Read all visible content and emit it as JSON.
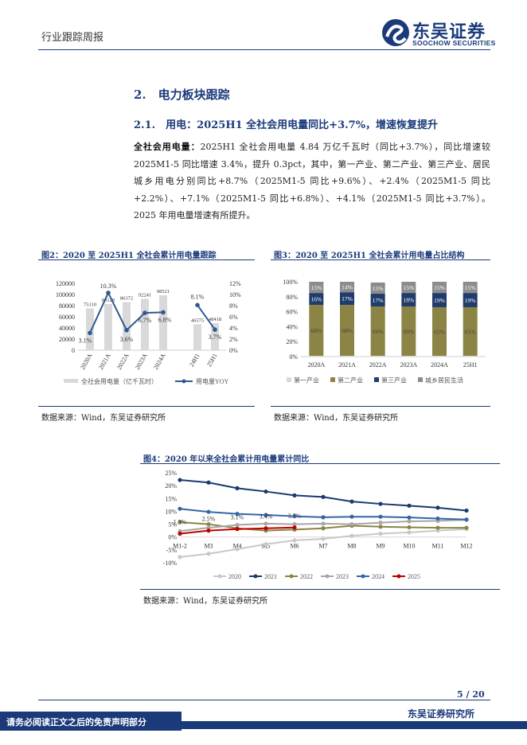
{
  "header": {
    "report_type": "行业跟踪周报",
    "logo_cn": "东吴证券",
    "logo_en": "SOOCHOW SECURITIES"
  },
  "section": {
    "heading": "2.　电力板块跟踪",
    "subheading": "2.1.　用电：2025H1 全社会用电量同比+3.7%，增速恢复提升"
  },
  "paragraph": {
    "lead": "全社会用电量：",
    "body": "2025H1 全社会用电量 4.84 万亿千瓦时（同比+3.7%），同比增速较 2025M1-5 同比增速 3.4%，提升 0.3pct，其中，第一产业、第二产业、第三产业、居民城乡用电分别同比+8.7%（2025M1-5 同比+9.6%）、+2.4%（2025M1-5 同比+2.2%）、+7.1%（2025M1-5 同比+6.8%）、+4.1%（2025M1-5 同比+3.7%）。2025 年用电量增速有所提升。"
  },
  "figures": {
    "fig2": {
      "title": "图2：2020 至 2025H1 全社会累计用电量跟踪",
      "source": "数据来源：Wind，东吴证券研究所"
    },
    "fig3": {
      "title": "图3：2020 至 2025H1 全社会累计用电量占比结构",
      "source": "数据来源：Wind，东吴证券研究所"
    },
    "fig4": {
      "title": "图4：2020 年以来全社会累计用电量累计同比",
      "source": "数据来源：Wind，东吴证券研究所"
    }
  },
  "chart_data": [
    {
      "type": "bar",
      "categories": [
        "2020A",
        "2021A",
        "2022A",
        "2023A",
        "2024A",
        "24H1",
        "25H1"
      ],
      "series": [
        {
          "name": "全社会用电量（亿千瓦时）",
          "kind": "bar",
          "axis": "left",
          "values": [
            75110,
            83128,
            86372,
            92241,
            98521,
            46575,
            48418
          ],
          "labels": [
            "75110",
            "83128",
            "86372",
            "92241",
            "98521",
            "46575",
            "48418"
          ],
          "color": "#d9d9d9"
        },
        {
          "name": "用电量YOY",
          "kind": "line",
          "axis": "right",
          "values": [
            3.1,
            10.3,
            3.6,
            6.7,
            6.8,
            8.1,
            3.7
          ],
          "labels": [
            "3.1%",
            "10.3%",
            "3.6%",
            "6.7%",
            "6.8%",
            "8.1%",
            "3.7%"
          ],
          "color": "#2e5b8f"
        }
      ],
      "yticks_left": [
        "0",
        "20000",
        "40000",
        "60000",
        "80000",
        "100000",
        "120000"
      ],
      "yticks_right": [
        "0%",
        "2%",
        "4%",
        "6%",
        "8%",
        "10%",
        "12%"
      ],
      "ylim_left": [
        0,
        120000
      ],
      "ylim_right": [
        0,
        12
      ],
      "legend_position": "bottom"
    },
    {
      "type": "bar",
      "stacked": true,
      "categories": [
        "2020A",
        "2021A",
        "2022A",
        "2023A",
        "2024A",
        "25H1"
      ],
      "series": [
        {
          "name": "第一产业",
          "values": [
            1,
            1,
            1,
            1,
            1,
            1
          ],
          "labels": [
            "1%",
            "1%",
            "1%",
            "1%",
            "1%",
            "1%"
          ],
          "color": "#d9d9d9"
        },
        {
          "name": "第二产业",
          "values": [
            68,
            68,
            66,
            66,
            65,
            65
          ],
          "labels": [
            "68%",
            "68%",
            "66%",
            "66%",
            "65%",
            "65%"
          ],
          "color": "#8c8444"
        },
        {
          "name": "第三产业",
          "values": [
            16,
            17,
            17,
            18,
            19,
            19
          ],
          "labels": [
            "16%",
            "17%",
            "17%",
            "18%",
            "19%",
            "19%"
          ],
          "color": "#1f3c6b"
        },
        {
          "name": "城乡居民生活",
          "values": [
            15,
            14,
            15,
            15,
            15,
            15
          ],
          "labels": [
            "15%",
            "14%",
            "15%",
            "15%",
            "15%",
            "15%"
          ],
          "color": "#8c8c8c"
        }
      ],
      "yticks": [
        "0%",
        "20%",
        "40%",
        "60%",
        "80%",
        "100%"
      ],
      "ylim": [
        0,
        100
      ],
      "legend_position": "bottom"
    },
    {
      "type": "line",
      "x": [
        "M1-2",
        "M3",
        "M4",
        "M5",
        "M6",
        "M7",
        "M8",
        "M9",
        "M10",
        "M11",
        "M12"
      ],
      "series": [
        {
          "name": "2020",
          "values": [
            -7.8,
            -6.5,
            -4.7,
            -2.8,
            -1.3,
            -0.7,
            0.5,
            1.3,
            1.8,
            2.5,
            3.1
          ],
          "color": "#c8c8c8"
        },
        {
          "name": "2021",
          "values": [
            22.2,
            21.2,
            19.0,
            17.7,
            16.2,
            15.6,
            13.8,
            12.9,
            12.2,
            11.4,
            10.3
          ],
          "color": "#1a3a6e"
        },
        {
          "name": "2022",
          "values": [
            5.8,
            5.0,
            3.4,
            2.5,
            2.9,
            3.4,
            4.4,
            4.0,
            3.8,
            3.6,
            3.6
          ],
          "color": "#8c8444"
        },
        {
          "name": "2023",
          "values": [
            2.3,
            3.6,
            4.7,
            5.2,
            5.0,
            5.2,
            5.0,
            5.6,
            6.1,
            6.3,
            6.7
          ],
          "color": "#a6a6a6"
        },
        {
          "name": "2024",
          "values": [
            11.0,
            9.8,
            9.0,
            8.6,
            8.1,
            7.7,
            7.9,
            7.9,
            7.6,
            7.2,
            6.8
          ],
          "color": "#3565a8"
        },
        {
          "name": "2025",
          "values": [
            1.3,
            2.5,
            3.1,
            3.4,
            3.7
          ],
          "color": "#c00000"
        }
      ],
      "labels": [
        {
          "index": 0,
          "text": "1.3%"
        },
        {
          "index": 1,
          "text": "2.5%"
        },
        {
          "index": 2,
          "text": "3.1%"
        },
        {
          "index": 3,
          "text": "3.4%"
        },
        {
          "index": 4,
          "text": "3.7%"
        }
      ],
      "yticks": [
        "-10%",
        "-5%",
        "0%",
        "5%",
        "10%",
        "15%",
        "20%",
        "25%"
      ],
      "ylim": [
        -10,
        25
      ],
      "legend_position": "bottom"
    }
  ],
  "footer": {
    "page": "5 / 20",
    "org": "东吴证券研究所",
    "disclaimer": "请务必阅读正文之后的免责声明部分"
  }
}
